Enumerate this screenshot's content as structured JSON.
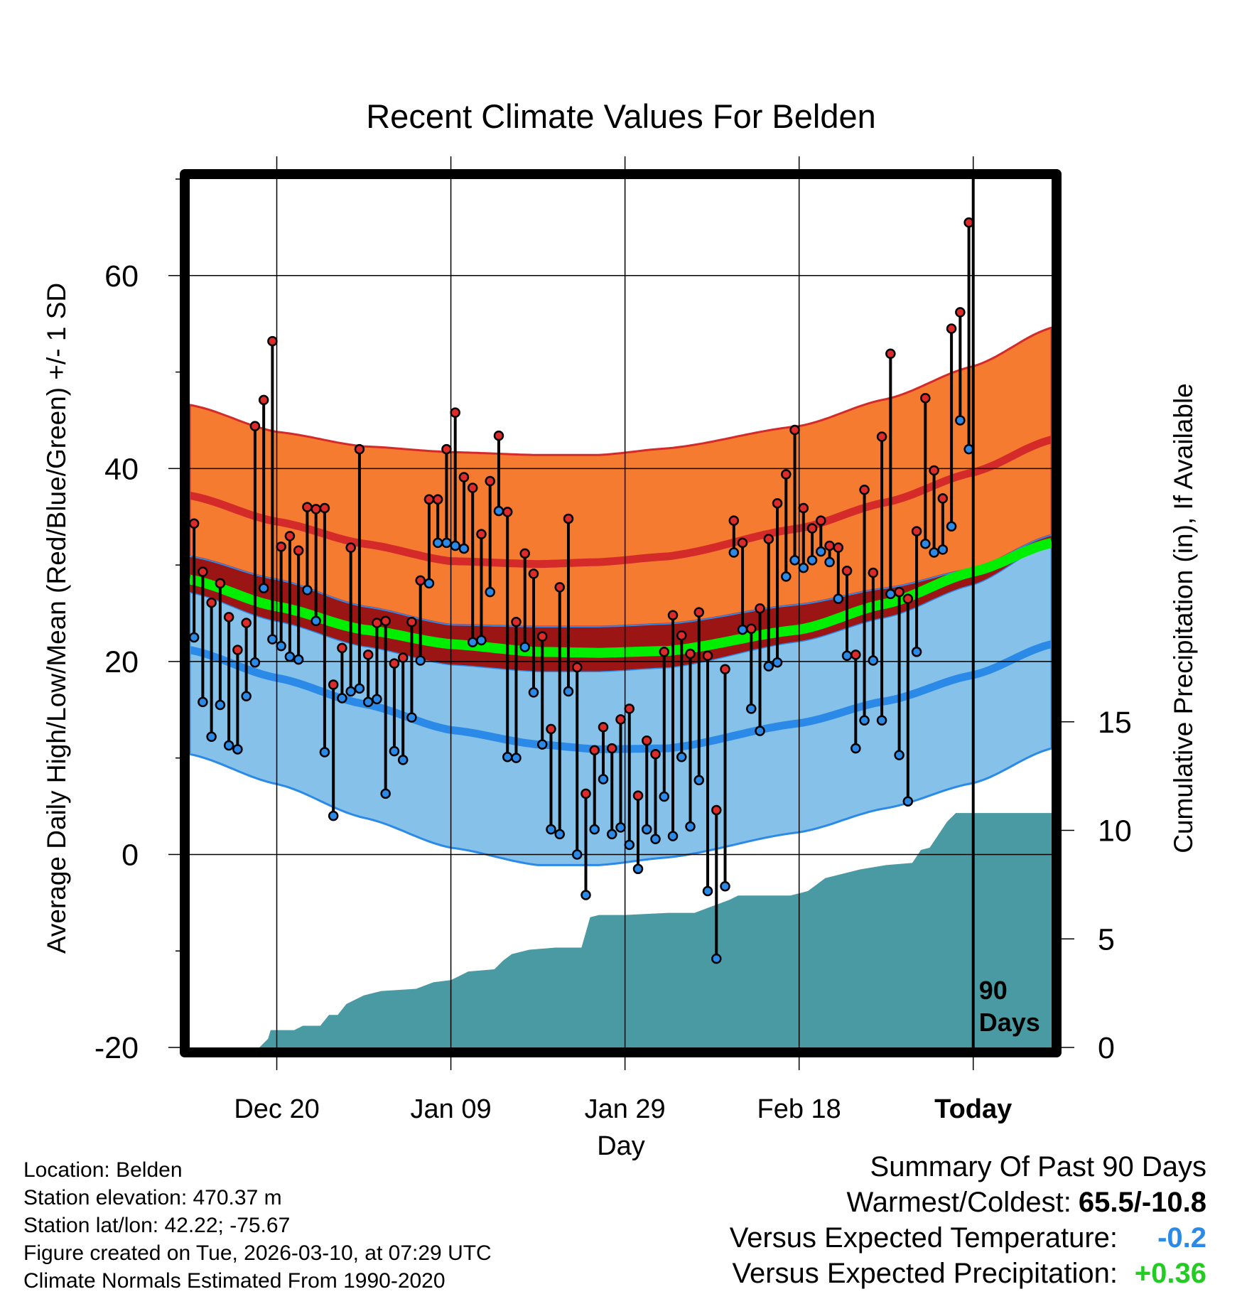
{
  "chart_data": {
    "type": "line",
    "title": "Recent Climate Values For Belden",
    "xlabel": "Day",
    "ylabel": "Average Daily High/Low/Mean (Red/Blue/Green) +/- 1 SD",
    "y2label": "Cumulative Precipitation (in), If Available",
    "ylim": [
      -20,
      70
    ],
    "y2lim": [
      0,
      40
    ],
    "yticks": [
      "-20",
      "0",
      "20",
      "40",
      "60"
    ],
    "y2ticks": [
      "0",
      "5",
      "10",
      "15"
    ],
    "xlim_days": [
      0,
      99
    ],
    "today_day": 90,
    "today_marker": [
      "90",
      "Days"
    ],
    "xticks": [
      {
        "label": "Dec 20",
        "day": 10
      },
      {
        "label": "Jan 09",
        "day": 30
      },
      {
        "label": "Jan 29",
        "day": 50
      },
      {
        "label": "Feb 18",
        "day": 70
      },
      {
        "label": "Today",
        "day": 90
      }
    ],
    "normals": {
      "days": [
        0,
        10,
        20,
        30,
        40,
        47,
        55,
        70,
        80,
        90,
        99
      ],
      "high_mean": [
        37.2,
        34.5,
        32.2,
        30.4,
        30.1,
        30.3,
        30.9,
        33.8,
        36.5,
        39.6,
        43.0
      ],
      "high_sd_upper": [
        46.6,
        43.8,
        42.3,
        41.7,
        41.4,
        41.4,
        42.1,
        44.4,
        47.2,
        50.6,
        54.6
      ],
      "high_sd_lower": [
        30.9,
        28.5,
        25.7,
        23.8,
        23.6,
        23.6,
        23.9,
        25.9,
        27.6,
        29.6,
        33.1
      ],
      "low_mean": [
        21.2,
        18.3,
        15.6,
        12.9,
        11.4,
        10.9,
        11.0,
        13.6,
        15.9,
        18.6,
        21.8
      ],
      "low_sd_upper": [
        27.2,
        24.2,
        21.6,
        19.7,
        19.0,
        19.0,
        19.4,
        22.1,
        24.6,
        28.0,
        32.4
      ],
      "low_sd_lower": [
        10.4,
        7.3,
        3.8,
        0.7,
        -1.1,
        -1.1,
        -0.3,
        2.3,
        4.8,
        7.4,
        11.0
      ],
      "mean": [
        28.5,
        25.7,
        23.3,
        21.8,
        21.0,
        20.9,
        21.1,
        23.3,
        26.0,
        29.3,
        32.3
      ]
    },
    "series": [
      {
        "name": "High",
        "color": "#dd2b2b",
        "values": [
          34.3,
          29.3,
          26.1,
          28.1,
          24.6,
          21.2,
          24.0,
          44.4,
          47.1,
          53.2,
          31.9,
          33.0,
          31.5,
          36.0,
          35.8,
          35.9,
          17.6,
          21.4,
          31.8,
          42.0,
          20.7,
          24.0,
          24.2,
          19.8,
          20.4,
          24.1,
          28.4,
          36.8,
          36.8,
          42.0,
          45.8,
          39.1,
          38.0,
          33.2,
          38.7,
          43.4,
          35.5,
          24.1,
          31.2,
          29.1,
          22.6,
          13.0,
          27.7,
          34.8,
          19.4,
          6.3,
          10.8,
          13.2,
          11.0,
          14.0,
          15.1,
          6.1,
          11.8,
          10.4,
          21.0,
          24.8,
          22.7,
          20.8,
          25.1,
          20.6,
          4.6,
          19.2,
          34.6,
          32.3,
          23.4,
          25.5,
          32.7,
          36.4,
          39.4,
          44.0,
          35.9,
          33.8,
          34.6,
          32.0,
          31.8,
          29.4,
          20.7,
          37.8,
          29.2,
          43.3,
          51.9,
          27.2,
          26.5,
          33.5,
          47.3,
          39.8,
          36.9,
          54.5,
          56.2,
          65.5
        ]
      },
      {
        "name": "Low",
        "color": "#2b8ae8",
        "values": [
          22.5,
          15.8,
          12.2,
          15.5,
          11.3,
          10.9,
          16.4,
          19.9,
          27.6,
          22.3,
          21.6,
          20.5,
          20.2,
          27.4,
          24.2,
          10.6,
          4.0,
          16.2,
          16.9,
          17.2,
          15.8,
          16.1,
          6.3,
          10.7,
          9.8,
          14.2,
          20.1,
          28.1,
          32.3,
          32.3,
          32.0,
          31.7,
          22.0,
          22.2,
          27.2,
          35.6,
          10.1,
          10.0,
          21.5,
          16.8,
          11.4,
          2.6,
          2.1,
          16.9,
          0.0,
          -4.2,
          2.6,
          7.8,
          2.1,
          2.8,
          1.0,
          -1.5,
          2.6,
          1.6,
          6.0,
          1.9,
          10.1,
          2.9,
          7.7,
          -3.8,
          -10.8,
          -3.3,
          31.3,
          23.3,
          15.1,
          12.8,
          19.5,
          19.9,
          28.8,
          30.5,
          29.7,
          30.5,
          31.4,
          30.3,
          26.5,
          20.6,
          11.0,
          13.9,
          20.1,
          13.9,
          27.0,
          10.3,
          5.5,
          21.0,
          32.2,
          31.3,
          31.6,
          34.0,
          45.0,
          42.0
        ]
      }
    ],
    "precip_cumulative": {
      "days": [
        0,
        8,
        9,
        9.3,
        12,
        13,
        15,
        16,
        17,
        18,
        20,
        22,
        26,
        28,
        30,
        32,
        35,
        36,
        37,
        39,
        42,
        45,
        46,
        47,
        50,
        55,
        58,
        60,
        62,
        63,
        69,
        71,
        72,
        73,
        75,
        77,
        80,
        83,
        84,
        85,
        86,
        87,
        88,
        99
      ],
      "values": [
        0,
        0,
        0.4,
        0.8,
        0.8,
        1.0,
        1.0,
        1.5,
        1.5,
        2.0,
        2.4,
        2.6,
        2.7,
        3.0,
        3.1,
        3.5,
        3.6,
        4.0,
        4.3,
        4.5,
        4.6,
        4.6,
        6.0,
        6.1,
        6.1,
        6.2,
        6.2,
        6.5,
        6.8,
        7.0,
        7.0,
        7.2,
        7.5,
        7.8,
        8.0,
        8.2,
        8.4,
        8.5,
        9.1,
        9.2,
        9.8,
        10.4,
        10.8,
        10.8
      ]
    }
  },
  "info": {
    "location": "Location: Belden",
    "elevation": "Station elevation: 470.37 m",
    "latlon": "Station lat/lon: 42.22; -75.67",
    "created": "Figure created on Tue, 2026-03-10, at 07:29 UTC",
    "normals": "Climate Normals Estimated From 1990-2020"
  },
  "summary": {
    "title": "Summary Of Past 90 Days",
    "warmest_label": "Warmest/Coldest:",
    "warmest_value": "65.5/-10.8",
    "temp_label": "Versus Expected Temperature:",
    "temp_value": "-0.2",
    "temp_color": "#2b8ae8",
    "precip_label": "Versus Expected Precipitation:",
    "precip_value": "+0.36",
    "precip_color": "#22cc22"
  },
  "colors": {
    "orange_band": "#f47b30",
    "dark_red_band": "#9b1515",
    "light_blue_band": "#85c1e9",
    "high_line": "#d42a2a",
    "low_line": "#2b8ae8",
    "mean_line": "#00ee00",
    "precip_fill": "#4a9aa3"
  }
}
